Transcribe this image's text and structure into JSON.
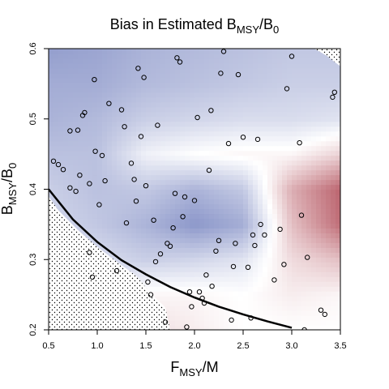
{
  "chart_data": {
    "type": "heatmap",
    "title": {
      "main": "Bias in Estimated B",
      "sub1": "MSY",
      "sep": "/B",
      "sub2": "0"
    },
    "xlabel": {
      "main": "F",
      "sub": "MSY",
      "tail": "/M"
    },
    "ylabel": {
      "main": "B",
      "sub": "MSY",
      "sep": "/B",
      "sub2": "0"
    },
    "xlim": [
      0.5,
      3.5
    ],
    "ylim": [
      0.2,
      0.6
    ],
    "x_ticks": [
      0.5,
      1.0,
      1.5,
      2.0,
      2.5,
      3.0,
      3.5
    ],
    "x_tick_labels": [
      "0.5",
      "1.0",
      "1.5",
      "2.0",
      "2.5",
      "3.0",
      "3.5"
    ],
    "y_ticks": [
      0.2,
      0.3,
      0.4,
      0.5,
      0.6
    ],
    "y_tick_labels": [
      "0.2",
      "0.3",
      "0.4",
      "0.5",
      "0.6"
    ],
    "colors": {
      "negative_bias": "#6675b8",
      "zero_bias": "#ffffff",
      "positive_bias": "#b04a56",
      "curve": "#000000",
      "points": "#000000"
    },
    "surface_bias_grid": {
      "x": [
        0.5,
        1.0,
        1.5,
        2.0,
        2.5,
        3.0,
        3.5
      ],
      "y": [
        0.2,
        0.25,
        0.3,
        0.35,
        0.4,
        0.45,
        0.5,
        0.55,
        0.6
      ],
      "z": [
        [
          0.0,
          0.15,
          0.2,
          0.1,
          0.0,
          0.0,
          0.0
        ],
        [
          -0.2,
          -0.1,
          0.05,
          0.05,
          0.0,
          0.1,
          0.05
        ],
        [
          -0.3,
          -0.25,
          -0.35,
          -0.3,
          -0.2,
          0.2,
          0.35
        ],
        [
          -0.3,
          -0.4,
          -0.55,
          -0.75,
          -0.6,
          0.35,
          0.8
        ],
        [
          -0.35,
          -0.45,
          -0.4,
          -0.55,
          -0.4,
          0.45,
          0.85
        ],
        [
          -0.45,
          -0.45,
          -0.1,
          0.0,
          0.05,
          0.05,
          0.25
        ],
        [
          -0.55,
          -0.5,
          -0.35,
          -0.3,
          -0.25,
          -0.25,
          -0.2
        ],
        [
          -0.6,
          -0.6,
          -0.5,
          -0.45,
          -0.4,
          -0.35,
          -0.35
        ],
        [
          -0.7,
          -0.65,
          -0.55,
          -0.5,
          -0.45,
          -0.4,
          -0.4
        ]
      ]
    },
    "boundary_curve": {
      "x": [
        0.5,
        0.75,
        1.0,
        1.25,
        1.5,
        1.75,
        2.0,
        2.25,
        2.5,
        2.75,
        3.0
      ],
      "y": [
        0.4,
        0.357,
        0.325,
        0.299,
        0.279,
        0.261,
        0.246,
        0.233,
        0.222,
        0.212,
        0.203
      ]
    },
    "excluded_regions": [
      {
        "name": "lower-left",
        "x": [
          0.5,
          0.5,
          0.6,
          0.8,
          1.0,
          1.2,
          1.4,
          1.55,
          1.7,
          1.75,
          0.5
        ],
        "y": [
          0.2,
          0.39,
          0.37,
          0.342,
          0.318,
          0.297,
          0.277,
          0.252,
          0.232,
          0.2,
          0.2
        ]
      },
      {
        "name": "upper-right",
        "x": [
          3.23,
          3.36,
          3.45,
          3.5,
          3.5,
          3.23
        ],
        "y": [
          0.6,
          0.59,
          0.58,
          0.575,
          0.6,
          0.6
        ]
      }
    ],
    "points": [
      {
        "x": 0.55,
        "y": 0.44
      },
      {
        "x": 0.6,
        "y": 0.435
      },
      {
        "x": 0.65,
        "y": 0.428
      },
      {
        "x": 0.72,
        "y": 0.402
      },
      {
        "x": 0.78,
        "y": 0.397
      },
      {
        "x": 0.72,
        "y": 0.483
      },
      {
        "x": 0.8,
        "y": 0.484
      },
      {
        "x": 0.82,
        "y": 0.42
      },
      {
        "x": 0.85,
        "y": 0.505
      },
      {
        "x": 0.87,
        "y": 0.509
      },
      {
        "x": 0.92,
        "y": 0.408
      },
      {
        "x": 0.97,
        "y": 0.556
      },
      {
        "x": 0.98,
        "y": 0.454
      },
      {
        "x": 1.02,
        "y": 0.378
      },
      {
        "x": 1.05,
        "y": 0.448
      },
      {
        "x": 1.08,
        "y": 0.412
      },
      {
        "x": 1.12,
        "y": 0.522
      },
      {
        "x": 1.2,
        "y": 0.284
      },
      {
        "x": 0.92,
        "y": 0.31
      },
      {
        "x": 0.95,
        "y": 0.275
      },
      {
        "x": 1.25,
        "y": 0.513
      },
      {
        "x": 1.28,
        "y": 0.489
      },
      {
        "x": 1.3,
        "y": 0.352
      },
      {
        "x": 1.35,
        "y": 0.437
      },
      {
        "x": 1.38,
        "y": 0.414
      },
      {
        "x": 1.4,
        "y": 0.383
      },
      {
        "x": 1.42,
        "y": 0.572
      },
      {
        "x": 1.45,
        "y": 0.475
      },
      {
        "x": 1.48,
        "y": 0.559
      },
      {
        "x": 1.5,
        "y": 0.405
      },
      {
        "x": 1.52,
        "y": 0.268
      },
      {
        "x": 1.55,
        "y": 0.25
      },
      {
        "x": 1.58,
        "y": 0.356
      },
      {
        "x": 1.6,
        "y": 0.297
      },
      {
        "x": 1.62,
        "y": 0.491
      },
      {
        "x": 1.65,
        "y": 0.308
      },
      {
        "x": 1.7,
        "y": 0.211
      },
      {
        "x": 1.72,
        "y": 0.323
      },
      {
        "x": 1.75,
        "y": 0.319
      },
      {
        "x": 1.78,
        "y": 0.345
      },
      {
        "x": 1.8,
        "y": 0.394
      },
      {
        "x": 1.82,
        "y": 0.587
      },
      {
        "x": 1.85,
        "y": 0.581
      },
      {
        "x": 1.88,
        "y": 0.361
      },
      {
        "x": 1.9,
        "y": 0.389
      },
      {
        "x": 1.92,
        "y": 0.204
      },
      {
        "x": 1.95,
        "y": 0.254
      },
      {
        "x": 1.97,
        "y": 0.233
      },
      {
        "x": 2.0,
        "y": 0.384
      },
      {
        "x": 2.03,
        "y": 0.502
      },
      {
        "x": 2.05,
        "y": 0.254
      },
      {
        "x": 2.08,
        "y": 0.245
      },
      {
        "x": 2.1,
        "y": 0.238
      },
      {
        "x": 2.12,
        "y": 0.278
      },
      {
        "x": 2.15,
        "y": 0.427
      },
      {
        "x": 2.17,
        "y": 0.512
      },
      {
        "x": 2.18,
        "y": 0.262
      },
      {
        "x": 2.22,
        "y": 0.312
      },
      {
        "x": 2.25,
        "y": 0.327
      },
      {
        "x": 2.27,
        "y": 0.565
      },
      {
        "x": 2.3,
        "y": 0.596
      },
      {
        "x": 2.35,
        "y": 0.465
      },
      {
        "x": 2.38,
        "y": 0.214
      },
      {
        "x": 2.4,
        "y": 0.29
      },
      {
        "x": 2.42,
        "y": 0.323
      },
      {
        "x": 2.45,
        "y": 0.563
      },
      {
        "x": 2.5,
        "y": 0.474
      },
      {
        "x": 2.55,
        "y": 0.289
      },
      {
        "x": 2.58,
        "y": 0.217
      },
      {
        "x": 2.6,
        "y": 0.335
      },
      {
        "x": 2.62,
        "y": 0.32
      },
      {
        "x": 2.65,
        "y": 0.471
      },
      {
        "x": 2.68,
        "y": 0.35
      },
      {
        "x": 2.72,
        "y": 0.335
      },
      {
        "x": 2.82,
        "y": 0.271
      },
      {
        "x": 2.88,
        "y": 0.343
      },
      {
        "x": 2.92,
        "y": 0.293
      },
      {
        "x": 2.95,
        "y": 0.543
      },
      {
        "x": 3.0,
        "y": 0.589
      },
      {
        "x": 3.08,
        "y": 0.466
      },
      {
        "x": 3.1,
        "y": 0.363
      },
      {
        "x": 3.13,
        "y": 0.2
      },
      {
        "x": 3.16,
        "y": 0.303
      },
      {
        "x": 3.3,
        "y": 0.228
      },
      {
        "x": 3.34,
        "y": 0.222
      },
      {
        "x": 3.42,
        "y": 0.531
      },
      {
        "x": 3.44,
        "y": 0.538
      }
    ]
  }
}
